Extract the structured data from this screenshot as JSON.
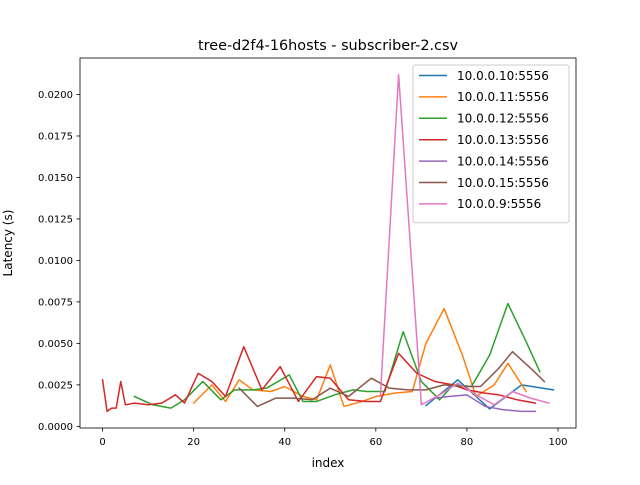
{
  "chart_data": {
    "type": "line",
    "title": "tree-d2f4-16hosts - subscriber-2.csv",
    "xlabel": "index",
    "ylabel": "Latency (s)",
    "xlim": [
      -4.95,
      103.95
    ],
    "ylim": [
      -0.0001,
      0.0222
    ],
    "xticks": [
      0,
      20,
      40,
      60,
      80,
      100
    ],
    "yticks": [
      0.0,
      0.0025,
      0.005,
      0.0075,
      0.01,
      0.0125,
      0.015,
      0.0175,
      0.02
    ],
    "ytick_labels": [
      "0.0000",
      "0.0025",
      "0.0050",
      "0.0075",
      "0.0100",
      "0.0125",
      "0.0150",
      "0.0175",
      "0.0200"
    ],
    "grid": false,
    "legend_position": "upper right",
    "series": [
      {
        "name": "10.0.0.10:5556",
        "color": "#1f77b4",
        "x": [
          71,
          78,
          85,
          92,
          99
        ],
        "y": [
          0.00125,
          0.0028,
          0.00105,
          0.0025,
          0.0022
        ]
      },
      {
        "name": "10.0.0.11:5556",
        "color": "#ff7f0e",
        "x": [
          20,
          24,
          27,
          30,
          33,
          37,
          40,
          44,
          47,
          50,
          53,
          57,
          60,
          64,
          68,
          71,
          75,
          79,
          82,
          86,
          89,
          93
        ],
        "y": [
          0.0014,
          0.0025,
          0.0015,
          0.0028,
          0.0022,
          0.0021,
          0.0024,
          0.0018,
          0.0016,
          0.0037,
          0.0012,
          0.0015,
          0.0018,
          0.002,
          0.0021,
          0.005,
          0.0071,
          0.0043,
          0.0018,
          0.0025,
          0.0038,
          0.0021
        ]
      },
      {
        "name": "10.0.0.12:5556",
        "color": "#2ca02c",
        "x": [
          7,
          11,
          15,
          18,
          22,
          26,
          29,
          33,
          36,
          41,
          44,
          47,
          51,
          55,
          58,
          62,
          66,
          70,
          74,
          77,
          81,
          85,
          89,
          93,
          96
        ],
        "y": [
          0.0018,
          0.0013,
          0.0011,
          0.0016,
          0.0027,
          0.0016,
          0.0022,
          0.0022,
          0.0023,
          0.0031,
          0.0015,
          0.0015,
          0.0019,
          0.0022,
          0.0021,
          0.0021,
          0.0057,
          0.0027,
          0.0016,
          0.0025,
          0.0024,
          0.0043,
          0.0074,
          0.0051,
          0.0033
        ]
      },
      {
        "name": "10.0.0.13:5556",
        "color": "#d62728",
        "x": [
          0,
          1,
          2,
          3,
          4,
          5,
          7,
          10,
          13,
          16,
          18,
          21,
          24,
          27,
          31,
          35,
          39,
          43,
          47,
          50,
          54,
          58,
          61,
          65,
          69,
          73,
          77,
          80,
          84,
          87,
          91,
          95
        ],
        "y": [
          0.0028,
          0.0009,
          0.0011,
          0.0011,
          0.0027,
          0.0013,
          0.0014,
          0.0013,
          0.0014,
          0.0019,
          0.0014,
          0.0032,
          0.0027,
          0.0018,
          0.0048,
          0.0022,
          0.0036,
          0.0015,
          0.003,
          0.0029,
          0.0016,
          0.0015,
          0.0015,
          0.0044,
          0.0032,
          0.0027,
          0.0025,
          0.0022,
          0.002,
          0.0019,
          0.0016,
          0.0014
        ]
      },
      {
        "name": "10.0.0.14:5556",
        "color": "#9467bd",
        "x": [
          73,
          76,
          80,
          84,
          88,
          92,
          95
        ],
        "y": [
          0.0017,
          0.0018,
          0.0019,
          0.0012,
          0.001,
          0.0009,
          0.0009
        ]
      },
      {
        "name": "10.0.0.15:5556",
        "color": "#8c564b",
        "x": [
          30,
          34,
          38,
          42,
          46,
          50,
          54,
          59,
          63,
          67,
          71,
          75,
          79,
          83,
          87,
          90,
          94,
          97
        ],
        "y": [
          0.0023,
          0.0012,
          0.0017,
          0.0017,
          0.0016,
          0.0023,
          0.0018,
          0.0029,
          0.0023,
          0.0022,
          0.0022,
          0.0025,
          0.0024,
          0.0024,
          0.0035,
          0.0045,
          0.0035,
          0.0027
        ]
      },
      {
        "name": "10.0.0.9:5556",
        "color": "#e377c2",
        "x": [
          61,
          65,
          70,
          74,
          78,
          82,
          86,
          90,
          94,
          98
        ],
        "y": [
          0.0018,
          0.0212,
          0.0013,
          0.0019,
          0.0026,
          0.0019,
          0.0013,
          0.0021,
          0.0017,
          0.0014
        ]
      }
    ]
  }
}
